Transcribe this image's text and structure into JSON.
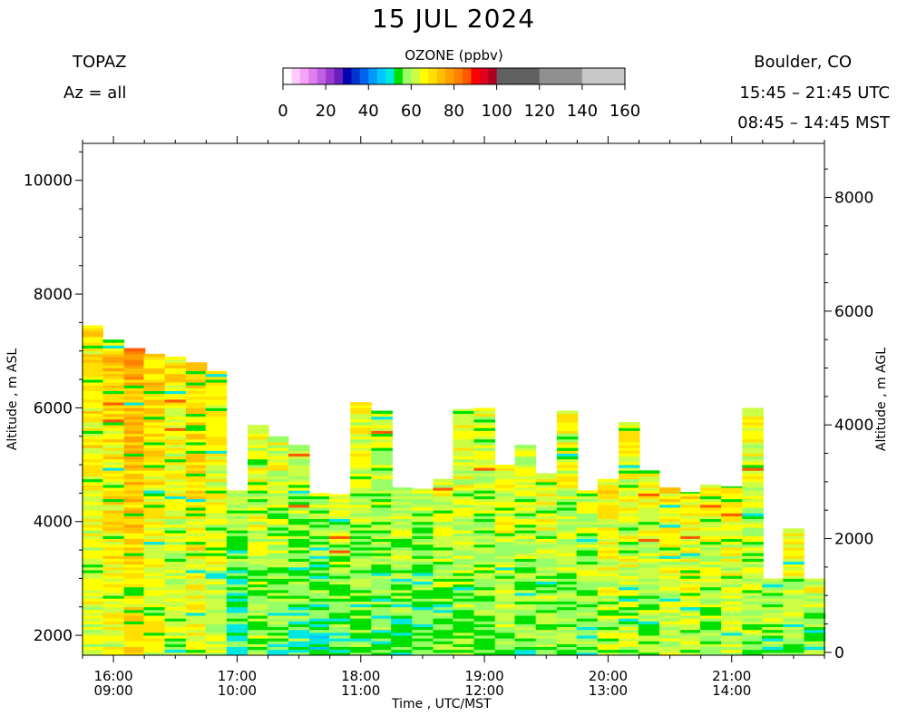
{
  "header": {
    "title": "15 JUL 2024",
    "instrument": "TOPAZ",
    "azimuth": "Az = all",
    "location": "Boulder, CO",
    "utc_range": "15:45 – 21:45 UTC",
    "mst_range": "08:45 – 14:45 MST"
  },
  "colorbar": {
    "label": "OZONE (ppbv)",
    "ticks": [
      "0",
      "20",
      "40",
      "60",
      "80",
      "100",
      "120",
      "140",
      "160"
    ],
    "range": [
      0,
      160
    ],
    "colors": [
      {
        "from": 0,
        "to": 4,
        "color": "#ffffff"
      },
      {
        "from": 4,
        "to": 8,
        "color": "#ffccff"
      },
      {
        "from": 8,
        "to": 12,
        "color": "#f5a3f5"
      },
      {
        "from": 12,
        "to": 16,
        "color": "#e080f0"
      },
      {
        "from": 16,
        "to": 20,
        "color": "#c060e0"
      },
      {
        "from": 20,
        "to": 24,
        "color": "#9c3ad0"
      },
      {
        "from": 24,
        "to": 28,
        "color": "#6a1ec0"
      },
      {
        "from": 28,
        "to": 32,
        "color": "#0000b0"
      },
      {
        "from": 32,
        "to": 36,
        "color": "#0034d0"
      },
      {
        "from": 36,
        "to": 40,
        "color": "#0064f0"
      },
      {
        "from": 40,
        "to": 44,
        "color": "#0098ff"
      },
      {
        "from": 44,
        "to": 48,
        "color": "#00c8ff"
      },
      {
        "from": 48,
        "to": 52,
        "color": "#00e8e0"
      },
      {
        "from": 52,
        "to": 56,
        "color": "#00e000"
      },
      {
        "from": 56,
        "to": 60,
        "color": "#99ff66"
      },
      {
        "from": 60,
        "to": 64,
        "color": "#ccff44"
      },
      {
        "from": 64,
        "to": 68,
        "color": "#ffff00"
      },
      {
        "from": 68,
        "to": 72,
        "color": "#ffe000"
      },
      {
        "from": 72,
        "to": 76,
        "color": "#ffc000"
      },
      {
        "from": 76,
        "to": 80,
        "color": "#ffa000"
      },
      {
        "from": 80,
        "to": 84,
        "color": "#ff8000"
      },
      {
        "from": 84,
        "to": 88,
        "color": "#ff5a00"
      },
      {
        "from": 88,
        "to": 92,
        "color": "#ff0000"
      },
      {
        "from": 92,
        "to": 96,
        "color": "#e00020"
      },
      {
        "from": 96,
        "to": 100,
        "color": "#b00020"
      },
      {
        "from": 100,
        "to": 120,
        "color": "#606060"
      },
      {
        "from": 120,
        "to": 140,
        "color": "#909090"
      },
      {
        "from": 140,
        "to": 160,
        "color": "#c8c8c8"
      }
    ]
  },
  "chart_data": {
    "type": "heatmap",
    "xlabel": "Time , UTC/MST",
    "ylabel_left": "Altitude , m ASL",
    "ylabel_right": "Altitude , m AGL",
    "x_ticks": [
      {
        "utc": "16:00",
        "mst": "09:00",
        "hour": 16
      },
      {
        "utc": "17:00",
        "mst": "10:00",
        "hour": 17
      },
      {
        "utc": "18:00",
        "mst": "11:00",
        "hour": 18
      },
      {
        "utc": "19:00",
        "mst": "12:00",
        "hour": 19
      },
      {
        "utc": "20:00",
        "mst": "13:00",
        "hour": 20
      },
      {
        "utc": "21:00",
        "mst": "14:00",
        "hour": 21
      }
    ],
    "xlim_utc_hours": [
      15.75,
      21.75
    ],
    "ylim_asl_m": [
      1650,
      10650
    ],
    "yticks_asl": [
      2000,
      4000,
      6000,
      8000,
      10000
    ],
    "yticks_agl": [
      0,
      2000,
      4000,
      6000,
      8000
    ],
    "agl_offset_m": 1700,
    "profiles": [
      {
        "time": 15.83,
        "top": 7450,
        "dominant_ppbv": 72
      },
      {
        "time": 16.0,
        "top": 7200,
        "dominant_ppbv": 74
      },
      {
        "time": 16.17,
        "top": 7050,
        "dominant_ppbv": 78
      },
      {
        "time": 16.33,
        "top": 6950,
        "dominant_ppbv": 74
      },
      {
        "time": 16.5,
        "top": 6900,
        "dominant_ppbv": 70
      },
      {
        "time": 16.67,
        "top": 6800,
        "dominant_ppbv": 74
      },
      {
        "time": 16.83,
        "top": 6650,
        "dominant_ppbv": 70
      },
      {
        "time": 17.0,
        "top": 4550,
        "dominant_ppbv": 62
      },
      {
        "time": 17.17,
        "top": 5700,
        "dominant_ppbv": 68
      },
      {
        "time": 17.33,
        "top": 5500,
        "dominant_ppbv": 66
      },
      {
        "time": 17.5,
        "top": 5350,
        "dominant_ppbv": 64
      },
      {
        "time": 17.67,
        "top": 4500,
        "dominant_ppbv": 62
      },
      {
        "time": 17.83,
        "top": 4480,
        "dominant_ppbv": 64
      },
      {
        "time": 18.0,
        "top": 6100,
        "dominant_ppbv": 66
      },
      {
        "time": 18.17,
        "top": 5950,
        "dominant_ppbv": 64
      },
      {
        "time": 18.33,
        "top": 4600,
        "dominant_ppbv": 64
      },
      {
        "time": 18.5,
        "top": 4580,
        "dominant_ppbv": 64
      },
      {
        "time": 18.67,
        "top": 4750,
        "dominant_ppbv": 66
      },
      {
        "time": 18.83,
        "top": 5980,
        "dominant_ppbv": 68
      },
      {
        "time": 19.0,
        "top": 6000,
        "dominant_ppbv": 66
      },
      {
        "time": 19.17,
        "top": 5000,
        "dominant_ppbv": 68
      },
      {
        "time": 19.33,
        "top": 5350,
        "dominant_ppbv": 66
      },
      {
        "time": 19.5,
        "top": 4850,
        "dominant_ppbv": 68
      },
      {
        "time": 19.67,
        "top": 5950,
        "dominant_ppbv": 68
      },
      {
        "time": 19.83,
        "top": 4550,
        "dominant_ppbv": 66
      },
      {
        "time": 20.0,
        "top": 4750,
        "dominant_ppbv": 70
      },
      {
        "time": 20.17,
        "top": 5750,
        "dominant_ppbv": 70
      },
      {
        "time": 20.33,
        "top": 4900,
        "dominant_ppbv": 68
      },
      {
        "time": 20.5,
        "top": 4600,
        "dominant_ppbv": 70
      },
      {
        "time": 20.67,
        "top": 4520,
        "dominant_ppbv": 70
      },
      {
        "time": 20.83,
        "top": 4650,
        "dominant_ppbv": 68
      },
      {
        "time": 21.0,
        "top": 4620,
        "dominant_ppbv": 70
      },
      {
        "time": 21.17,
        "top": 6000,
        "dominant_ppbv": 68
      },
      {
        "time": 21.33,
        "top": 3000,
        "dominant_ppbv": 66
      },
      {
        "time": 21.5,
        "top": 3880,
        "dominant_ppbv": 68
      },
      {
        "time": 21.67,
        "top": 3000,
        "dominant_ppbv": 66
      }
    ]
  }
}
